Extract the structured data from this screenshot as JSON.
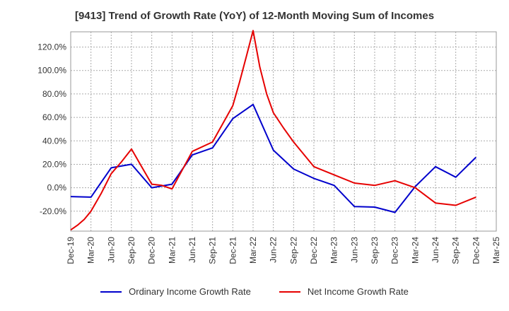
{
  "chart_data": {
    "type": "line",
    "title": "[9413]  Trend of Growth Rate (YoY) of 12-Month Moving Sum of Incomes",
    "xlabel": "",
    "ylabel": "",
    "x": [
      "Dec-19",
      "Mar-20",
      "Jun-20",
      "Sep-20",
      "Dec-20",
      "Mar-21",
      "Jun-21",
      "Sep-21",
      "Dec-21",
      "Mar-22",
      "Jun-22",
      "Sep-22",
      "Dec-22",
      "Mar-23",
      "Jun-23",
      "Sep-23",
      "Dec-23",
      "Mar-24",
      "Jun-24",
      "Sep-24",
      "Dec-24",
      "Mar-25"
    ],
    "ylim": [
      -37,
      133
    ],
    "yticks": [
      {
        "value": -20,
        "label": "-20.0%"
      },
      {
        "value": 0,
        "label": "0.0%"
      },
      {
        "value": 20,
        "label": "20.0%"
      },
      {
        "value": 40,
        "label": "40.0%"
      },
      {
        "value": 60,
        "label": "60.0%"
      },
      {
        "value": 80,
        "label": "80.0%"
      },
      {
        "value": 100,
        "label": "100.0%"
      },
      {
        "value": 120,
        "label": "120.0%"
      }
    ],
    "grid": true,
    "legend_position": "bottom",
    "series": [
      {
        "name": "Ordinary Income Growth Rate",
        "color": "#0000cc",
        "points": [
          {
            "x": 0,
            "y": -7.5
          },
          {
            "x": 1,
            "y": -8
          },
          {
            "x": 2,
            "y": 17
          },
          {
            "x": 3,
            "y": 20
          },
          {
            "x": 4,
            "y": 0
          },
          {
            "x": 5,
            "y": 3
          },
          {
            "x": 6,
            "y": 28
          },
          {
            "x": 7,
            "y": 34
          },
          {
            "x": 8,
            "y": 59
          },
          {
            "x": 9,
            "y": 71
          },
          {
            "x": 10,
            "y": 32
          },
          {
            "x": 11,
            "y": 16
          },
          {
            "x": 12,
            "y": 8
          },
          {
            "x": 13,
            "y": 2
          },
          {
            "x": 14,
            "y": -16
          },
          {
            "x": 15,
            "y": -16.5
          },
          {
            "x": 16,
            "y": -21
          },
          {
            "x": 17,
            "y": 1
          },
          {
            "x": 18,
            "y": 18
          },
          {
            "x": 19,
            "y": 9
          },
          {
            "x": 20,
            "y": 26
          }
        ]
      },
      {
        "name": "Net Income Growth Rate",
        "color": "#e60000",
        "points": [
          {
            "x": 0,
            "y": -36
          },
          {
            "x": 0.33,
            "y": -32
          },
          {
            "x": 0.67,
            "y": -27
          },
          {
            "x": 1,
            "y": -20
          },
          {
            "x": 1.5,
            "y": -5
          },
          {
            "x": 2,
            "y": 12
          },
          {
            "x": 2.5,
            "y": 22
          },
          {
            "x": 3,
            "y": 33
          },
          {
            "x": 3.5,
            "y": 18
          },
          {
            "x": 4,
            "y": 3
          },
          {
            "x": 4.5,
            "y": 2
          },
          {
            "x": 5,
            "y": -1
          },
          {
            "x": 5.5,
            "y": 15
          },
          {
            "x": 6,
            "y": 31
          },
          {
            "x": 7,
            "y": 39
          },
          {
            "x": 8,
            "y": 70
          },
          {
            "x": 8.33,
            "y": 90
          },
          {
            "x": 8.67,
            "y": 112
          },
          {
            "x": 9,
            "y": 134
          },
          {
            "x": 9.33,
            "y": 103
          },
          {
            "x": 9.67,
            "y": 80
          },
          {
            "x": 10,
            "y": 64
          },
          {
            "x": 10.5,
            "y": 51
          },
          {
            "x": 11,
            "y": 39
          },
          {
            "x": 12,
            "y": 18
          },
          {
            "x": 13,
            "y": 11
          },
          {
            "x": 14,
            "y": 4
          },
          {
            "x": 15,
            "y": 2
          },
          {
            "x": 16,
            "y": 6
          },
          {
            "x": 17,
            "y": 0
          },
          {
            "x": 18,
            "y": -13
          },
          {
            "x": 19,
            "y": -15
          },
          {
            "x": 20,
            "y": -8
          }
        ]
      }
    ]
  }
}
